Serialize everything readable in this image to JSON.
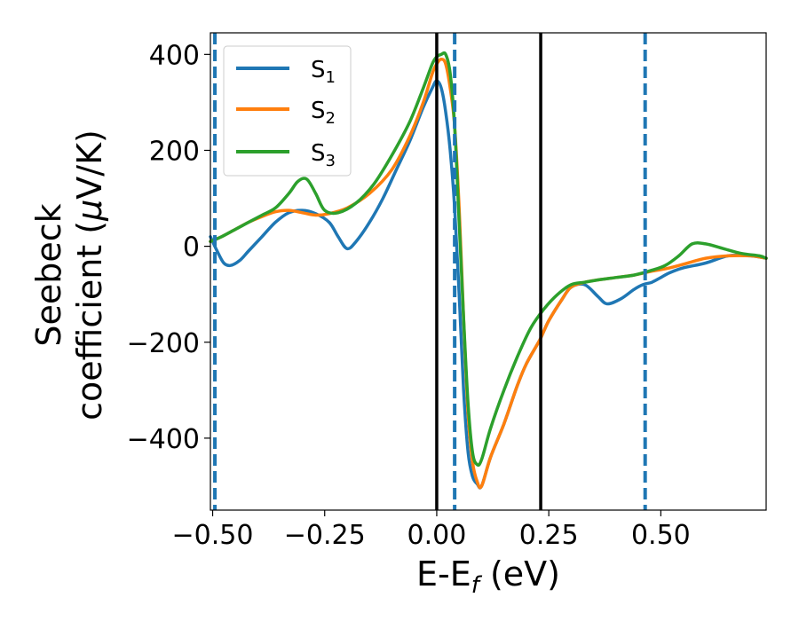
{
  "chart_data": {
    "type": "line",
    "xlabel": "E-E",
    "xlabel_sub": "f",
    "xlabel_unit": " (eV)",
    "ylabel_line1": "Seebeck",
    "ylabel_line2": "coefficient  (",
    "ylabel_mu": "μ",
    "ylabel_unit": "V/K)",
    "xlim": [
      -0.505,
      0.735
    ],
    "ylim": [
      -550,
      445
    ],
    "xticks": [
      -0.5,
      -0.25,
      0.0,
      0.25,
      0.5
    ],
    "xtick_labels": [
      "−0.50",
      "−0.25",
      "0.00",
      "0.25",
      "0.50"
    ],
    "yticks": [
      400,
      200,
      0,
      -200,
      -400
    ],
    "ytick_labels": [
      "400",
      "200",
      "0",
      "−200",
      "−400"
    ],
    "grid": false,
    "legend_position": "top-left",
    "series": [
      {
        "name": "S",
        "sub": "1",
        "color": "#1f77b4",
        "x": [
          -0.505,
          -0.49,
          -0.475,
          -0.46,
          -0.44,
          -0.42,
          -0.39,
          -0.36,
          -0.33,
          -0.3,
          -0.27,
          -0.24,
          -0.22,
          -0.2,
          -0.18,
          -0.15,
          -0.12,
          -0.09,
          -0.06,
          -0.03,
          -0.01,
          0.0,
          0.01,
          0.02,
          0.03,
          0.04,
          0.05,
          0.06,
          0.07,
          0.08,
          0.09,
          0.1,
          0.12,
          0.15,
          0.18,
          0.2,
          0.23,
          0.25,
          0.28,
          0.3,
          0.33,
          0.36,
          0.38,
          0.41,
          0.44,
          0.46,
          0.48,
          0.5,
          0.52,
          0.55,
          0.6,
          0.65,
          0.7,
          0.735
        ],
        "y": [
          20,
          -10,
          -35,
          -40,
          -30,
          -10,
          20,
          50,
          70,
          75,
          68,
          50,
          20,
          -5,
          10,
          50,
          100,
          160,
          220,
          290,
          330,
          345,
          330,
          280,
          200,
          80,
          -100,
          -300,
          -430,
          -480,
          -495,
          -500,
          -440,
          -370,
          -290,
          -245,
          -195,
          -155,
          -110,
          -85,
          -80,
          -105,
          -120,
          -110,
          -90,
          -80,
          -75,
          -65,
          -55,
          -45,
          -35,
          -20,
          -20,
          -25
        ]
      },
      {
        "name": "S",
        "sub": "2",
        "color": "#ff7f0e",
        "x": [
          -0.505,
          -0.48,
          -0.45,
          -0.42,
          -0.39,
          -0.36,
          -0.33,
          -0.3,
          -0.27,
          -0.24,
          -0.2,
          -0.15,
          -0.1,
          -0.06,
          -0.03,
          -0.01,
          0.0,
          0.01,
          0.02,
          0.03,
          0.04,
          0.05,
          0.06,
          0.07,
          0.08,
          0.09,
          0.1,
          0.12,
          0.15,
          0.18,
          0.2,
          0.23,
          0.25,
          0.28,
          0.3,
          0.33,
          0.36,
          0.4,
          0.44,
          0.48,
          0.52,
          0.56,
          0.6,
          0.65,
          0.7,
          0.735
        ],
        "y": [
          10,
          20,
          35,
          50,
          62,
          72,
          75,
          70,
          65,
          68,
          80,
          110,
          160,
          230,
          300,
          360,
          380,
          390,
          380,
          330,
          250,
          80,
          -150,
          -350,
          -450,
          -490,
          -500,
          -440,
          -370,
          -290,
          -245,
          -195,
          -155,
          -110,
          -85,
          -75,
          -70,
          -65,
          -60,
          -52,
          -45,
          -35,
          -25,
          -20,
          -20,
          -25
        ]
      },
      {
        "name": "S",
        "sub": "3",
        "color": "#2ca02c",
        "x": [
          -0.505,
          -0.48,
          -0.45,
          -0.42,
          -0.39,
          -0.36,
          -0.33,
          -0.31,
          -0.29,
          -0.27,
          -0.25,
          -0.22,
          -0.18,
          -0.14,
          -0.1,
          -0.06,
          -0.03,
          -0.01,
          0.0,
          0.01,
          0.02,
          0.03,
          0.04,
          0.05,
          0.06,
          0.07,
          0.08,
          0.09,
          0.1,
          0.12,
          0.15,
          0.18,
          0.21,
          0.24,
          0.27,
          0.3,
          0.33,
          0.36,
          0.4,
          0.44,
          0.48,
          0.51,
          0.54,
          0.57,
          0.6,
          0.64,
          0.68,
          0.72,
          0.735
        ],
        "y": [
          10,
          20,
          35,
          50,
          65,
          80,
          110,
          135,
          140,
          110,
          75,
          70,
          90,
          130,
          190,
          260,
          330,
          380,
          395,
          400,
          400,
          360,
          250,
          50,
          -150,
          -330,
          -430,
          -455,
          -445,
          -380,
          -300,
          -230,
          -170,
          -130,
          -100,
          -80,
          -75,
          -70,
          -65,
          -60,
          -50,
          -40,
          -20,
          5,
          5,
          -5,
          -15,
          -20,
          -25
        ]
      }
    ],
    "vlines": [
      {
        "x": 0.0,
        "color": "#000000",
        "style": "solid"
      },
      {
        "x": 0.232,
        "color": "#000000",
        "style": "solid"
      },
      {
        "x": -0.495,
        "color": "#1f77b4",
        "style": "dashed"
      },
      {
        "x": 0.04,
        "color": "#1f77b4",
        "style": "dashed"
      },
      {
        "x": 0.465,
        "color": "#1f77b4",
        "style": "dashed"
      }
    ]
  }
}
